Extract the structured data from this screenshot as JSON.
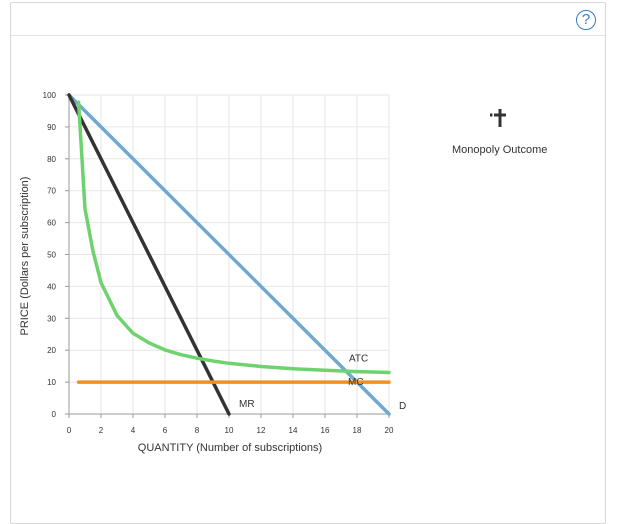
{
  "help_icon": {
    "glyph": "?",
    "name": "help-icon",
    "color": "#3a7cc3"
  },
  "toolbox": {
    "tool_label": "Monopoly Outcome",
    "tool_icon": "crosshair-marker-icon"
  },
  "chart_data": {
    "type": "line",
    "xlabel": "QUANTITY (Number of subscriptions)",
    "ylabel": "PRICE (Dollars per subscription)",
    "xlim": [
      0,
      20
    ],
    "ylim": [
      0,
      100
    ],
    "xticks": [
      0,
      2,
      4,
      6,
      8,
      10,
      12,
      14,
      16,
      18,
      20
    ],
    "yticks": [
      0,
      10,
      20,
      30,
      40,
      50,
      60,
      70,
      80,
      90,
      100
    ],
    "grid": true,
    "series": [
      {
        "name": "D",
        "color": "#6fa8d0",
        "x": [
          0,
          20
        ],
        "y": [
          100,
          0
        ]
      },
      {
        "name": "MR",
        "color": "#333333",
        "x": [
          0,
          10
        ],
        "y": [
          100,
          0
        ]
      },
      {
        "name": "ATC",
        "color": "#6ed36e",
        "x": [
          0.6,
          1.0,
          1.5,
          2,
          3,
          4,
          5,
          6,
          7,
          8,
          9,
          10,
          12,
          14,
          16,
          18,
          20
        ],
        "y": [
          97.7,
          64.3,
          51.0,
          41.2,
          30.9,
          25.3,
          22.3,
          20.1,
          18.6,
          17.5,
          16.6,
          15.9,
          14.9,
          14.2,
          13.7,
          13.3,
          13.0
        ]
      },
      {
        "name": "MC",
        "color": "#f0901e",
        "x": [
          0.6,
          20
        ],
        "y": [
          10,
          10
        ]
      }
    ]
  }
}
